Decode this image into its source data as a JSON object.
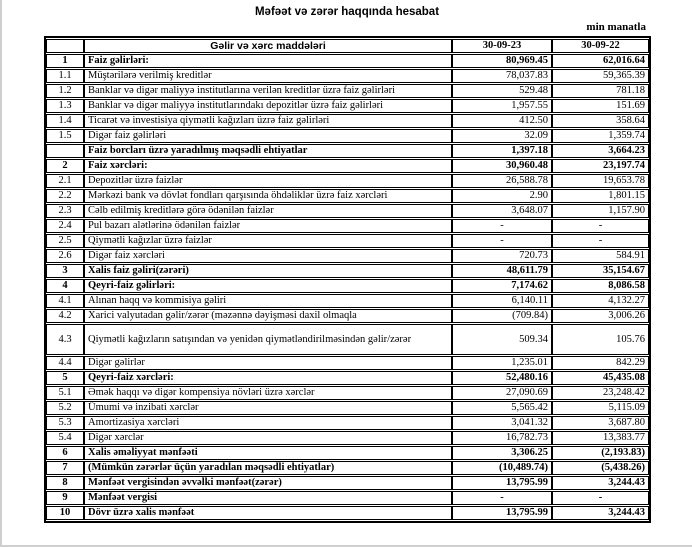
{
  "title": "Məfəət və zərər haqqında hesabat",
  "units_label": "min manatla",
  "table": {
    "headers": {
      "num": "",
      "label": "Gəlir və xərc maddələri",
      "col_2023": "30-09-23",
      "col_2022": "30-09-22"
    },
    "rows": [
      {
        "num": "1",
        "label": "Faiz gəlirləri:",
        "v1": "80,969.45",
        "v2": "62,016.64",
        "bold": true
      },
      {
        "num": "1.1",
        "label": "Müştərilərə verilmiş kreditlər",
        "v1": "78,037.83",
        "v2": "59,365.39",
        "bold": false
      },
      {
        "num": "1.2",
        "label": "Banklar və digər maliyyə institutlarına verilən kreditlər üzrə faiz gəlirləri",
        "v1": "529.48",
        "v2": "781.18",
        "bold": false
      },
      {
        "num": "1.3",
        "label": "Banklar və digər maliyyə institutlarındakı depozitlər üzrə faiz gəlirləri",
        "v1": "1,957.55",
        "v2": "151.69",
        "bold": false
      },
      {
        "num": "1.4",
        "label": "Ticarət və investisiya qiymətli kağızları üzrə faiz gəlirləri",
        "v1": "412.50",
        "v2": "358.64",
        "bold": false
      },
      {
        "num": "1.5",
        "label": "Digər faiz gəlirləri",
        "v1": "32.09",
        "v2": "1,359.74",
        "bold": false
      },
      {
        "num": "",
        "label": "Faiz borcları üzrə yaradılmış məqsədli ehtiyatlar",
        "v1": "1,397.18",
        "v2": "3,664.23",
        "bold": true
      },
      {
        "num": "2",
        "label": "Faiz xərcləri:",
        "v1": "30,960.48",
        "v2": "23,197.74",
        "bold": true
      },
      {
        "num": "2.1",
        "label": "Depozitlər üzrə faizlər",
        "v1": "26,588.78",
        "v2": "19,653.78",
        "bold": false
      },
      {
        "num": "2.2",
        "label": "Mərkəzi bank və dövlət fondları qarşısında öhdəliklər üzrə faiz xərcləri",
        "v1": "2.90",
        "v2": "1,801.15",
        "bold": false
      },
      {
        "num": "2.3",
        "label": "Cəlb edilmiş kreditlərə görə ödənilən faizlər",
        "v1": "3,648.07",
        "v2": "1,157.90",
        "bold": false
      },
      {
        "num": "2.4",
        "label": "Pul bazarı alətlərinə ödənilən faizlər",
        "v1": "-",
        "v2": "-",
        "bold": false
      },
      {
        "num": "2.5",
        "label": "Qiymətli kağızlar üzrə faizlər",
        "v1": "-",
        "v2": "-",
        "bold": false
      },
      {
        "num": "2.6",
        "label": "Digər faiz xərcləri",
        "v1": "720.73",
        "v2": "584.91",
        "bold": false
      },
      {
        "num": "3",
        "label": "Xalis faiz gəliri(zərəri)",
        "v1": "48,611.79",
        "v2": "35,154.67",
        "bold": true
      },
      {
        "num": "4",
        "label": "Qeyri-faiz gəlirləri:",
        "v1": "7,174.62",
        "v2": "8,086.58",
        "bold": true
      },
      {
        "num": "4.1",
        "label": "Alınan haqq və kommisiya gəliri",
        "v1": "6,140.11",
        "v2": "4,132.27",
        "bold": false
      },
      {
        "num": "4.2",
        "label": "Xarici valyutadan gəlir/zərər (məzənnə dəyişməsi daxil olmaqla",
        "v1": "(709.84)",
        "v2": "3,006.26",
        "bold": false
      },
      {
        "num": "4.3",
        "label": "Qiymətli kağızların satışından və yenidən qiymətləndirilməsindən gəlir/zərər",
        "v1": "509.34",
        "v2": "105.76",
        "bold": false,
        "tall": true
      },
      {
        "num": "4.4",
        "label": "Digər gəlirlər",
        "v1": "1,235.01",
        "v2": "842.29",
        "bold": false
      },
      {
        "num": "5",
        "label": "Qeyri-faiz xərcləri:",
        "v1": "52,480.16",
        "v2": "45,435.08",
        "bold": true
      },
      {
        "num": "5.1",
        "label": "Əmək haqqı və digər kompensiya növləri üzrə xərclər",
        "v1": "27,090.69",
        "v2": "23,248.42",
        "bold": false
      },
      {
        "num": "5.2",
        "label": "Ümumi və inzibati xərclər",
        "v1": "5,565.42",
        "v2": "5,115.09",
        "bold": false
      },
      {
        "num": "5.3",
        "label": "Amortizasiya xərcləri",
        "v1": "3,041.32",
        "v2": "3,687.80",
        "bold": false
      },
      {
        "num": "5.4",
        "label": "Digər xərclər",
        "v1": "16,782.73",
        "v2": "13,383.77",
        "bold": false
      },
      {
        "num": "6",
        "label": "Xalis əməliyyat mənfəəti",
        "v1": "3,306.25",
        "v2": "(2,193.83)",
        "bold": true
      },
      {
        "num": "7",
        "label": "(Mümkün zərərlər üçün yaradılan məqsədli ehtiyatlar)",
        "v1": "(10,489.74)",
        "v2": "(5,438.26)",
        "bold": true
      },
      {
        "num": "8",
        "label": "Mənfəət vergisindən əvvəlki mənfəət(zərər)",
        "v1": "13,795.99",
        "v2": "3,244.43",
        "bold": true
      },
      {
        "num": "9",
        "label": "Mənfəət vergisi",
        "v1": "-",
        "v2": "-",
        "bold": true
      },
      {
        "num": "10",
        "label": "Dövr üzrə xalis mənfəət",
        "v1": "13,795.99",
        "v2": "3,244.43",
        "bold": true
      }
    ]
  }
}
